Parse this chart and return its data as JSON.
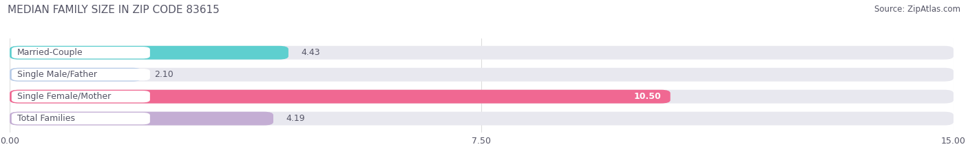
{
  "title": "MEDIAN FAMILY SIZE IN ZIP CODE 83615",
  "source": "Source: ZipAtlas.com",
  "categories": [
    "Married-Couple",
    "Single Male/Father",
    "Single Female/Mother",
    "Total Families"
  ],
  "values": [
    4.43,
    2.1,
    10.5,
    4.19
  ],
  "bar_colors": [
    "#5ecfcf",
    "#b8cce8",
    "#f06892",
    "#c4aed4"
  ],
  "bar_bg_color": "#e8e8ef",
  "value_colors": [
    "#666666",
    "#666666",
    "#ffffff",
    "#666666"
  ],
  "xlim": [
    0,
    15.0
  ],
  "xticks": [
    0.0,
    7.5,
    15.0
  ],
  "xtick_labels": [
    "0.00",
    "7.50",
    "15.00"
  ],
  "bar_height": 0.62,
  "figsize": [
    14.06,
    2.33
  ],
  "dpi": 100,
  "title_fontsize": 11,
  "source_fontsize": 8.5,
  "label_fontsize": 9,
  "value_fontsize": 9,
  "tick_fontsize": 9,
  "background_color": "#ffffff",
  "grid_color": "#dddddd",
  "text_color": "#555566"
}
